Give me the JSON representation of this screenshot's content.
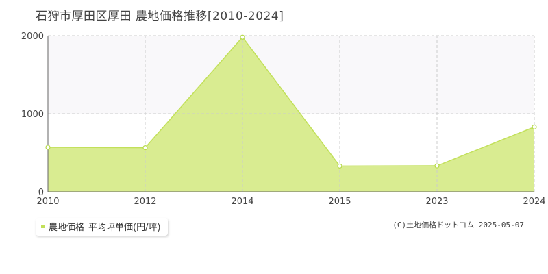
{
  "title": "石狩市厚田区厚田 農地価格推移[2010-2024]",
  "colors": {
    "fill": "#d9ec91",
    "line": "#c2e05a",
    "point_stroke": "#b5d94a",
    "grid": "#cccccc",
    "axis": "#666666",
    "band": "#f9f8fa"
  },
  "legend": {
    "series_label": "農地価格",
    "unit_label": "平均坪単価(円/坪)"
  },
  "copyright": "(C)土地価格ドットコム 2025-05-07",
  "chart_data": {
    "type": "area",
    "title": "石狩市厚田区厚田 農地価格推移[2010-2024]",
    "categories": [
      "2010",
      "2012",
      "2014",
      "2015",
      "2023",
      "2024"
    ],
    "series": [
      {
        "name": "農地価格",
        "values": [
          570,
          565,
          1980,
          330,
          333,
          830
        ]
      }
    ],
    "yticks": [
      0,
      1000,
      2000
    ],
    "ylim": [
      0,
      2000
    ],
    "grid": true,
    "legend_position": "bottom-left"
  }
}
